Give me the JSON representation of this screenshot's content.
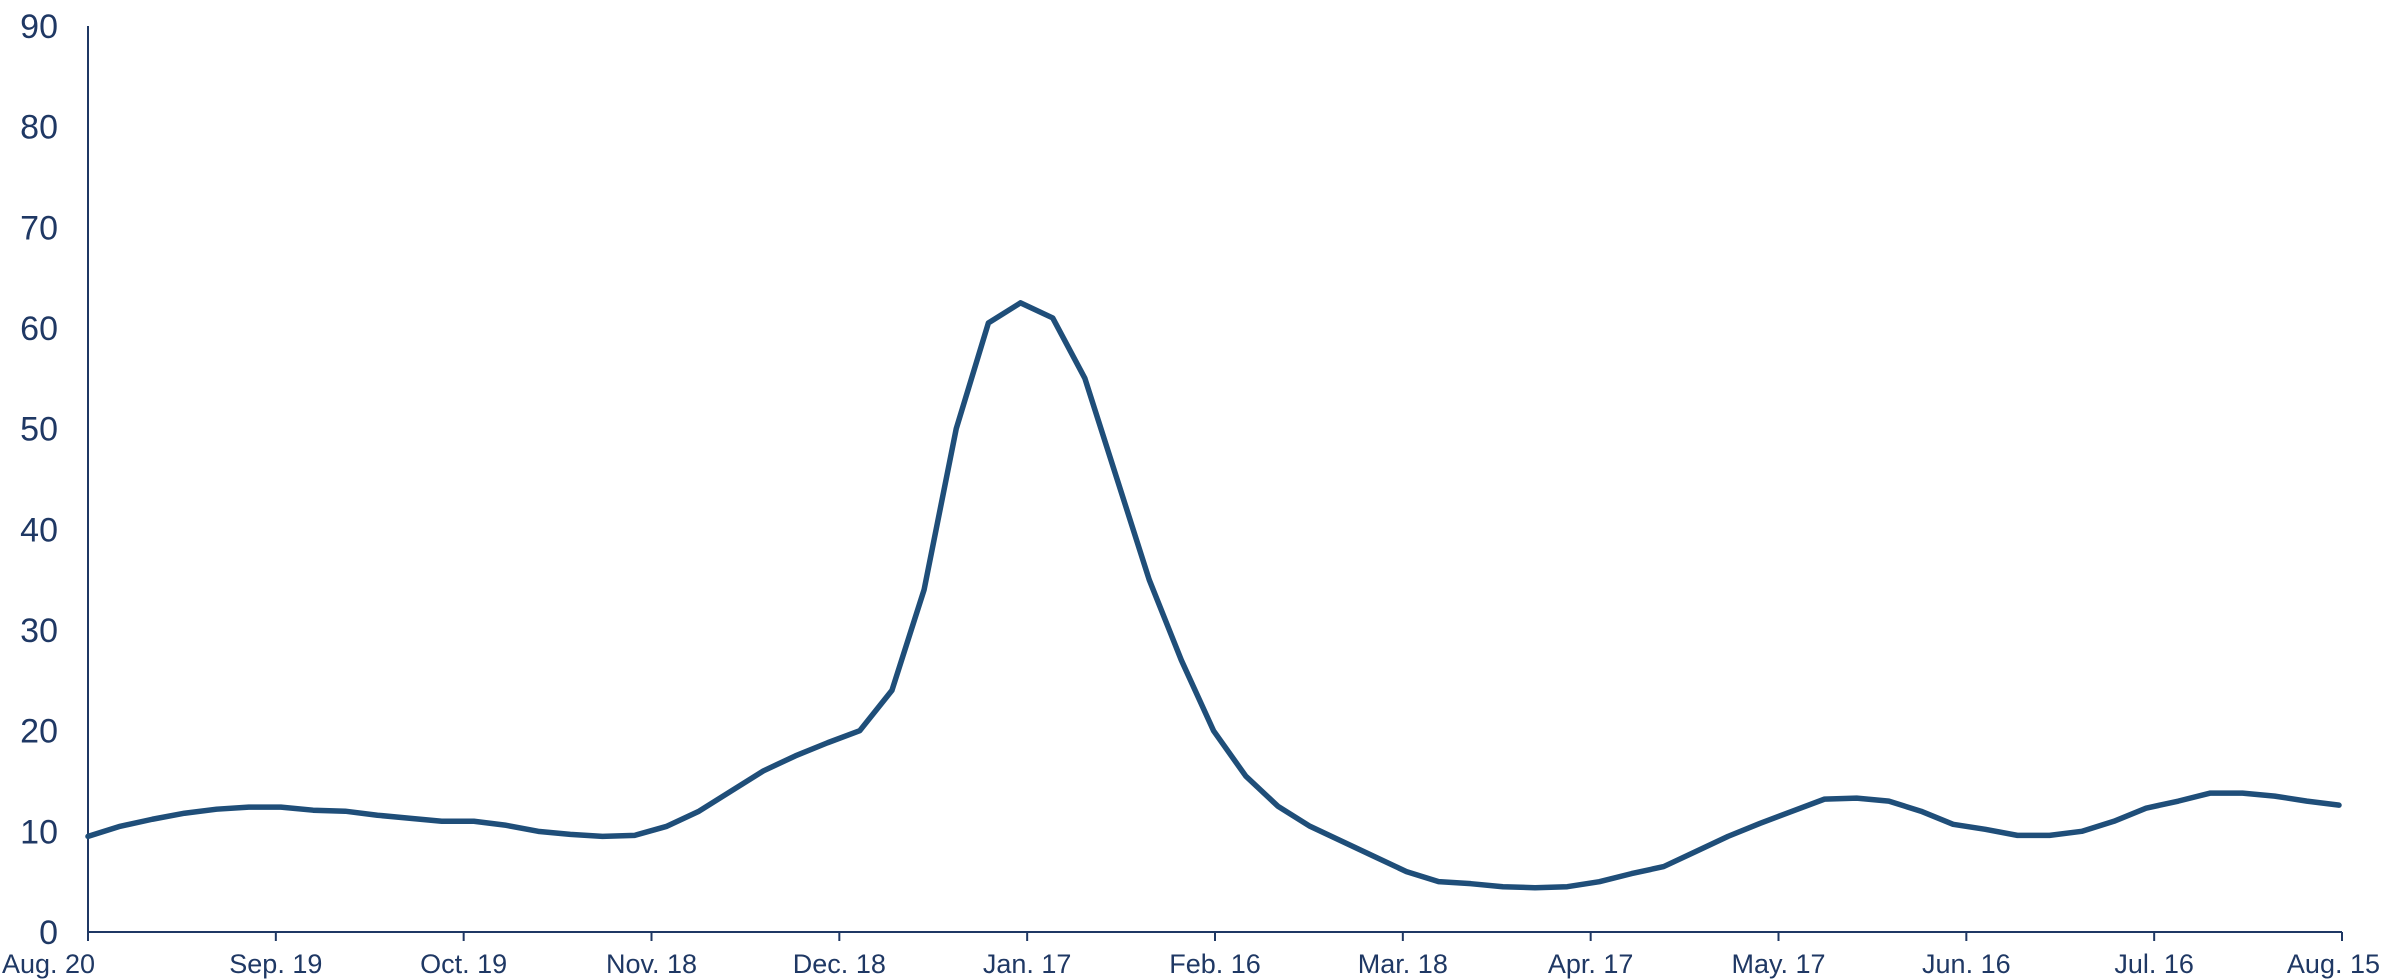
{
  "chart_data": {
    "type": "line",
    "title": "",
    "xlabel": "",
    "ylabel": "",
    "ylim": [
      0,
      90
    ],
    "y_ticks": [
      "0",
      "10",
      "20",
      "30",
      "40",
      "50",
      "60",
      "70",
      "80",
      "90"
    ],
    "x_ticks": [
      "Aug. 20",
      "Sep. 19",
      "Oct. 19",
      "Nov. 18",
      "Dec. 18",
      "Jan. 17",
      "Feb. 16",
      "Mar. 18",
      "Apr. 17",
      "May. 17",
      "Jun. 16",
      "Jul. 16",
      "Aug. 15"
    ],
    "grid": false,
    "legend": "none",
    "line_color": "#1f4e79",
    "axis_color": "#1f3864",
    "series": [
      {
        "values": [
          9.5,
          10.5,
          11.2,
          11.8,
          12.2,
          12.4,
          12.4,
          12.1,
          12.0,
          11.6,
          11.3,
          11.0,
          11.0,
          10.6,
          10.0,
          9.7,
          9.5,
          9.6,
          10.5,
          12.0,
          14.0,
          16.0,
          17.5,
          18.8,
          20.0,
          24.0,
          34.0,
          50.0,
          60.5,
          62.5,
          61.0,
          55.0,
          45.0,
          35.0,
          27.0,
          20.0,
          15.5,
          12.5,
          10.5,
          9.0,
          7.5,
          6.0,
          5.0,
          4.8,
          4.5,
          4.4,
          4.5,
          5.0,
          5.8,
          6.5,
          8.0,
          9.5,
          10.8,
          12.0,
          13.2,
          13.3,
          13.0,
          12.0,
          10.7,
          10.2,
          9.6,
          9.6,
          10.0,
          11.0,
          12.3,
          13.0,
          13.8,
          13.8,
          13.5,
          13.0,
          12.6
        ]
      }
    ]
  }
}
